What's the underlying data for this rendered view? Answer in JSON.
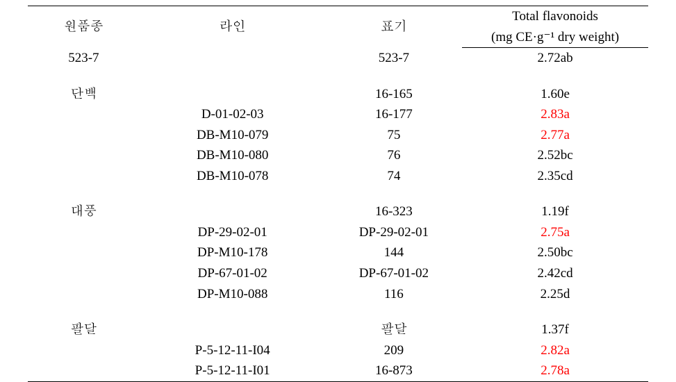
{
  "header": {
    "col1": "원품종",
    "col2": "라인",
    "col3": "표기",
    "col4_top": "Total flavonoids",
    "col4_bottom": "(mg CE·g⁻¹ dry weight)"
  },
  "groups": [
    {
      "cultivar": "523-7",
      "rows": [
        {
          "line": "",
          "mark": "523-7",
          "value": "2.72ab",
          "highlight": false
        }
      ]
    },
    {
      "cultivar": "단백",
      "rows": [
        {
          "line": "",
          "mark": "16-165",
          "value": "1.60e",
          "highlight": false
        },
        {
          "line": "D-01-02-03",
          "mark": "16-177",
          "value": "2.83a",
          "highlight": true
        },
        {
          "line": "DB-M10-079",
          "mark": "75",
          "value": "2.77a",
          "highlight": true
        },
        {
          "line": "DB-M10-080",
          "mark": "76",
          "value": "2.52bc",
          "highlight": false
        },
        {
          "line": "DB-M10-078",
          "mark": "74",
          "value": "2.35cd",
          "highlight": false
        }
      ]
    },
    {
      "cultivar": "대풍",
      "rows": [
        {
          "line": "",
          "mark": "16-323",
          "value": "1.19f",
          "highlight": false
        },
        {
          "line": "DP-29-02-01",
          "mark": "DP-29-02-01",
          "value": "2.75a",
          "highlight": true
        },
        {
          "line": "DP-M10-178",
          "mark": "144",
          "value": "2.50bc",
          "highlight": false
        },
        {
          "line": "DP-67-01-02",
          "mark": "DP-67-01-02",
          "value": "2.42cd",
          "highlight": false
        },
        {
          "line": "DP-M10-088",
          "mark": "116",
          "value": "2.25d",
          "highlight": false
        }
      ]
    },
    {
      "cultivar": "팔달",
      "rows": [
        {
          "line": "",
          "mark": "팔달",
          "value": "1.37f",
          "highlight": false
        },
        {
          "line": "P-5-12-11-I04",
          "mark": "209",
          "value": "2.82a",
          "highlight": true
        },
        {
          "line": "P-5-12-11-I01",
          "mark": "16-873",
          "value": "2.78a",
          "highlight": true
        }
      ]
    }
  ],
  "style": {
    "text_color": "#000000",
    "highlight_color": "#ff0000",
    "border_color": "#000000",
    "background": "#ffffff",
    "fontsize": 19
  }
}
